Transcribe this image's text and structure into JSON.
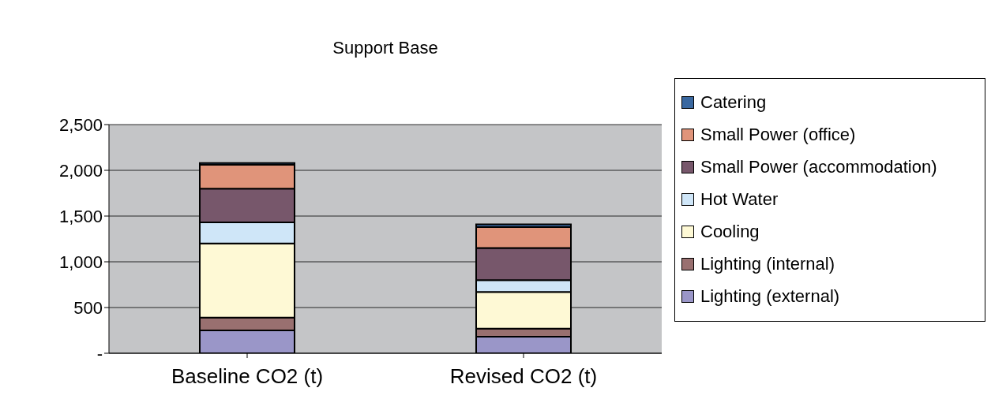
{
  "chart_data": {
    "type": "bar",
    "title": "Support Base",
    "categories": [
      "Baseline CO2 (t)",
      "Revised CO2 (t)"
    ],
    "stacked": true,
    "series": [
      {
        "name": "Lighting (external)",
        "color": "#9a96c8",
        "values": [
          250,
          180
        ]
      },
      {
        "name": "Lighting (internal)",
        "color": "#997070",
        "values": [
          140,
          90
        ]
      },
      {
        "name": "Cooling",
        "color": "#fef9d5",
        "values": [
          810,
          400
        ]
      },
      {
        "name": "Hot Water",
        "color": "#cfe6f8",
        "values": [
          230,
          130
        ]
      },
      {
        "name": "Small Power (accommodation)",
        "color": "#77576b",
        "values": [
          370,
          350
        ]
      },
      {
        "name": "Small Power (office)",
        "color": "#e0947a",
        "values": [
          260,
          230
        ]
      },
      {
        "name": "Catering",
        "color": "#3a68a0",
        "values": [
          20,
          30
        ]
      }
    ],
    "ylim": [
      0,
      2500
    ],
    "yticks": [
      {
        "value": 0,
        "label": "-"
      },
      {
        "value": 500,
        "label": "500"
      },
      {
        "value": 1000,
        "label": "1,000"
      },
      {
        "value": 1500,
        "label": "1,500"
      },
      {
        "value": 2000,
        "label": "2,000"
      },
      {
        "value": 2500,
        "label": "2,500"
      }
    ],
    "grid": "y",
    "legend": "right"
  }
}
